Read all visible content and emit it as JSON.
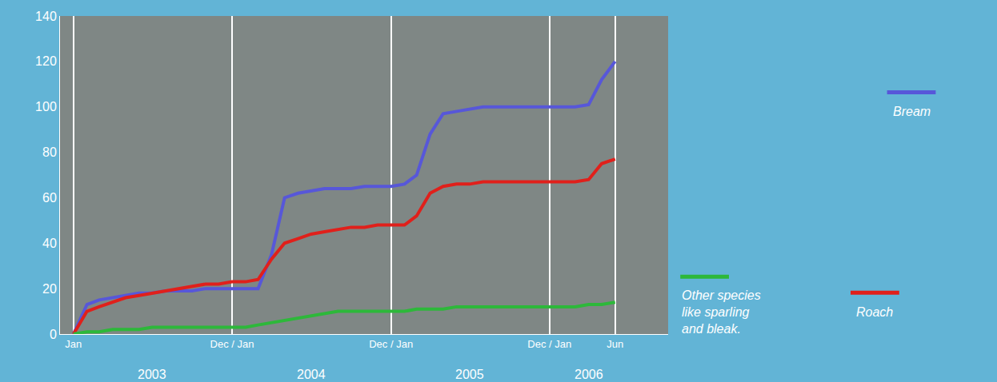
{
  "chart_data": {
    "type": "line",
    "x": [
      "2003-01",
      "2003-02",
      "2003-03",
      "2003-04",
      "2003-05",
      "2003-06",
      "2003-07",
      "2003-08",
      "2003-09",
      "2003-10",
      "2003-11",
      "2003-12",
      "2004-01",
      "2004-02",
      "2004-03",
      "2004-04",
      "2004-05",
      "2004-06",
      "2004-07",
      "2004-08",
      "2004-09",
      "2004-10",
      "2004-11",
      "2004-12",
      "2005-01",
      "2005-02",
      "2005-03",
      "2005-04",
      "2005-05",
      "2005-06",
      "2005-07",
      "2005-08",
      "2005-09",
      "2005-10",
      "2005-11",
      "2005-12",
      "2006-01",
      "2006-02",
      "2006-03",
      "2006-04",
      "2006-05",
      "2006-06"
    ],
    "series": [
      {
        "name": "Bream",
        "color": "#5757d9",
        "values": [
          0,
          13,
          15,
          16,
          17,
          18,
          18,
          19,
          19,
          19,
          20,
          20,
          20,
          20,
          20,
          35,
          60,
          62,
          63,
          64,
          64,
          64,
          65,
          65,
          65,
          66,
          70,
          88,
          97,
          98,
          99,
          100,
          100,
          100,
          100,
          100,
          100,
          100,
          100,
          101,
          112,
          120
        ]
      },
      {
        "name": "Roach",
        "color": "#e0201b",
        "values": [
          0,
          10,
          12,
          14,
          16,
          17,
          18,
          19,
          20,
          21,
          22,
          22,
          23,
          23,
          24,
          33,
          40,
          42,
          44,
          45,
          46,
          47,
          47,
          48,
          48,
          48,
          52,
          62,
          65,
          66,
          66,
          67,
          67,
          67,
          67,
          67,
          67,
          67,
          67,
          68,
          75,
          77
        ]
      },
      {
        "name": "Other species like sparling and bleak.",
        "color": "#2db83a",
        "values": [
          0,
          1,
          1,
          2,
          2,
          2,
          3,
          3,
          3,
          3,
          3,
          3,
          3,
          3,
          4,
          5,
          6,
          7,
          8,
          9,
          10,
          10,
          10,
          10,
          10,
          10,
          11,
          11,
          11,
          12,
          12,
          12,
          12,
          12,
          12,
          12,
          12,
          12,
          12,
          13,
          13,
          14
        ]
      }
    ],
    "xlim": [
      "2002-12",
      "2006-10"
    ],
    "xticks": [
      {
        "value": "2003-01",
        "label": "Jan"
      },
      {
        "value": "2004-01",
        "label": "Dec / Jan"
      },
      {
        "value": "2005-01",
        "label": "Dec / Jan"
      },
      {
        "value": "2006-01",
        "label": "Dec / Jan"
      },
      {
        "value": "2006-06",
        "label": "Jun"
      }
    ],
    "ylim": [
      0,
      140
    ],
    "yticks": [
      0,
      20,
      40,
      60,
      80,
      100,
      120,
      140
    ],
    "grid": true,
    "annotations": [
      {
        "text": "2003",
        "x": "2003-07"
      },
      {
        "text": "2004",
        "x": "2004-07"
      },
      {
        "text": "2005",
        "x": "2005-07"
      },
      {
        "text": "2006",
        "x": "2006-04"
      }
    ]
  }
}
